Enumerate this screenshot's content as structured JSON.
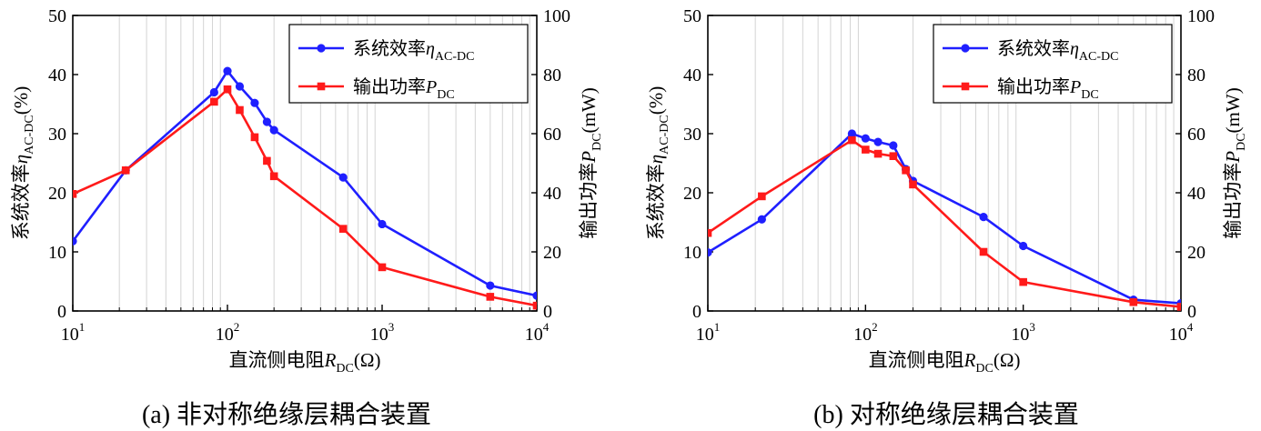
{
  "chart_data": [
    {
      "type": "line",
      "caption": "(a)  非对称绝缘层耦合装置",
      "xlabel": {
        "main": "直流侧电阻",
        "var": "R",
        "sub": "DC",
        "suffix": "(Ω)"
      },
      "ylabel_left": {
        "main": "系统效率",
        "var": "η",
        "sub": "AC-DC",
        "suffix": "(%)"
      },
      "ylabel_right": {
        "main": "输出功率",
        "var": "P",
        "sub": "DC",
        "suffix": "(mW)"
      },
      "x_scale": "log",
      "xlim": [
        10,
        10000
      ],
      "xticks": [
        {
          "base": "10",
          "exp": "1"
        },
        {
          "base": "10",
          "exp": "2"
        },
        {
          "base": "10",
          "exp": "3"
        },
        {
          "base": "10",
          "exp": "4"
        }
      ],
      "ylim_left": [
        0,
        50
      ],
      "yticks_left": [
        "0",
        "10",
        "20",
        "30",
        "40",
        "50"
      ],
      "ylim_right": [
        0,
        100
      ],
      "yticks_right": [
        "0",
        "20",
        "40",
        "60",
        "80",
        "100"
      ],
      "legend_position": "top-right",
      "series": [
        {
          "name": "系统效率",
          "legend_var": "η",
          "legend_sub": "AC-DC",
          "axis": "left",
          "color": "#1f1fff",
          "marker": "circle",
          "x": [
            10,
            22,
            82,
            100,
            120,
            150,
            180,
            200,
            560,
            1000,
            5000,
            10000
          ],
          "y": [
            11.8,
            23.8,
            37.0,
            40.6,
            38.0,
            35.2,
            32.0,
            30.6,
            22.6,
            14.7,
            4.3,
            2.6
          ]
        },
        {
          "name": "输出功率",
          "legend_var": "P",
          "legend_sub": "DC",
          "axis": "right",
          "color": "#ff1a1a",
          "marker": "square",
          "x": [
            10,
            22,
            82,
            100,
            120,
            150,
            180,
            200,
            560,
            1000,
            5000,
            10000
          ],
          "y": [
            39.6,
            47.6,
            70.8,
            75.0,
            68.0,
            58.8,
            50.8,
            45.6,
            27.8,
            14.8,
            4.8,
            1.8
          ]
        }
      ]
    },
    {
      "type": "line",
      "caption": "(b)  对称绝缘层耦合装置",
      "xlabel": {
        "main": "直流侧电阻",
        "var": "R",
        "sub": "DC",
        "suffix": "(Ω)"
      },
      "ylabel_left": {
        "main": "系统效率",
        "var": "η",
        "sub": "AC-DC",
        "suffix": "(%)"
      },
      "ylabel_right": {
        "main": "输出功率",
        "var": "P",
        "sub": "DC",
        "suffix": "(mW)"
      },
      "x_scale": "log",
      "xlim": [
        10,
        10000
      ],
      "xticks": [
        {
          "base": "10",
          "exp": "1"
        },
        {
          "base": "10",
          "exp": "2"
        },
        {
          "base": "10",
          "exp": "3"
        },
        {
          "base": "10",
          "exp": "4"
        }
      ],
      "ylim_left": [
        0,
        50
      ],
      "yticks_left": [
        "0",
        "10",
        "20",
        "30",
        "40",
        "50"
      ],
      "ylim_right": [
        0,
        100
      ],
      "yticks_right": [
        "0",
        "20",
        "40",
        "60",
        "80",
        "100"
      ],
      "legend_position": "top-right",
      "series": [
        {
          "name": "系统效率",
          "legend_var": "η",
          "legend_sub": "AC-DC",
          "axis": "left",
          "color": "#1f1fff",
          "marker": "circle",
          "x": [
            10,
            22,
            82,
            100,
            120,
            150,
            180,
            200,
            560,
            1000,
            5000,
            10000
          ],
          "y": [
            9.9,
            15.5,
            30.0,
            29.2,
            28.6,
            28.0,
            24.0,
            22.0,
            15.9,
            11.0,
            1.9,
            1.3
          ]
        },
        {
          "name": "输出功率",
          "legend_var": "P",
          "legend_sub": "DC",
          "axis": "right",
          "color": "#ff1a1a",
          "marker": "square",
          "x": [
            10,
            22,
            82,
            100,
            120,
            150,
            180,
            200,
            560,
            1000,
            5000,
            10000
          ],
          "y": [
            26.4,
            38.8,
            57.8,
            54.6,
            53.2,
            52.4,
            47.6,
            42.8,
            20.0,
            9.8,
            3.0,
            1.4
          ]
        }
      ]
    }
  ]
}
